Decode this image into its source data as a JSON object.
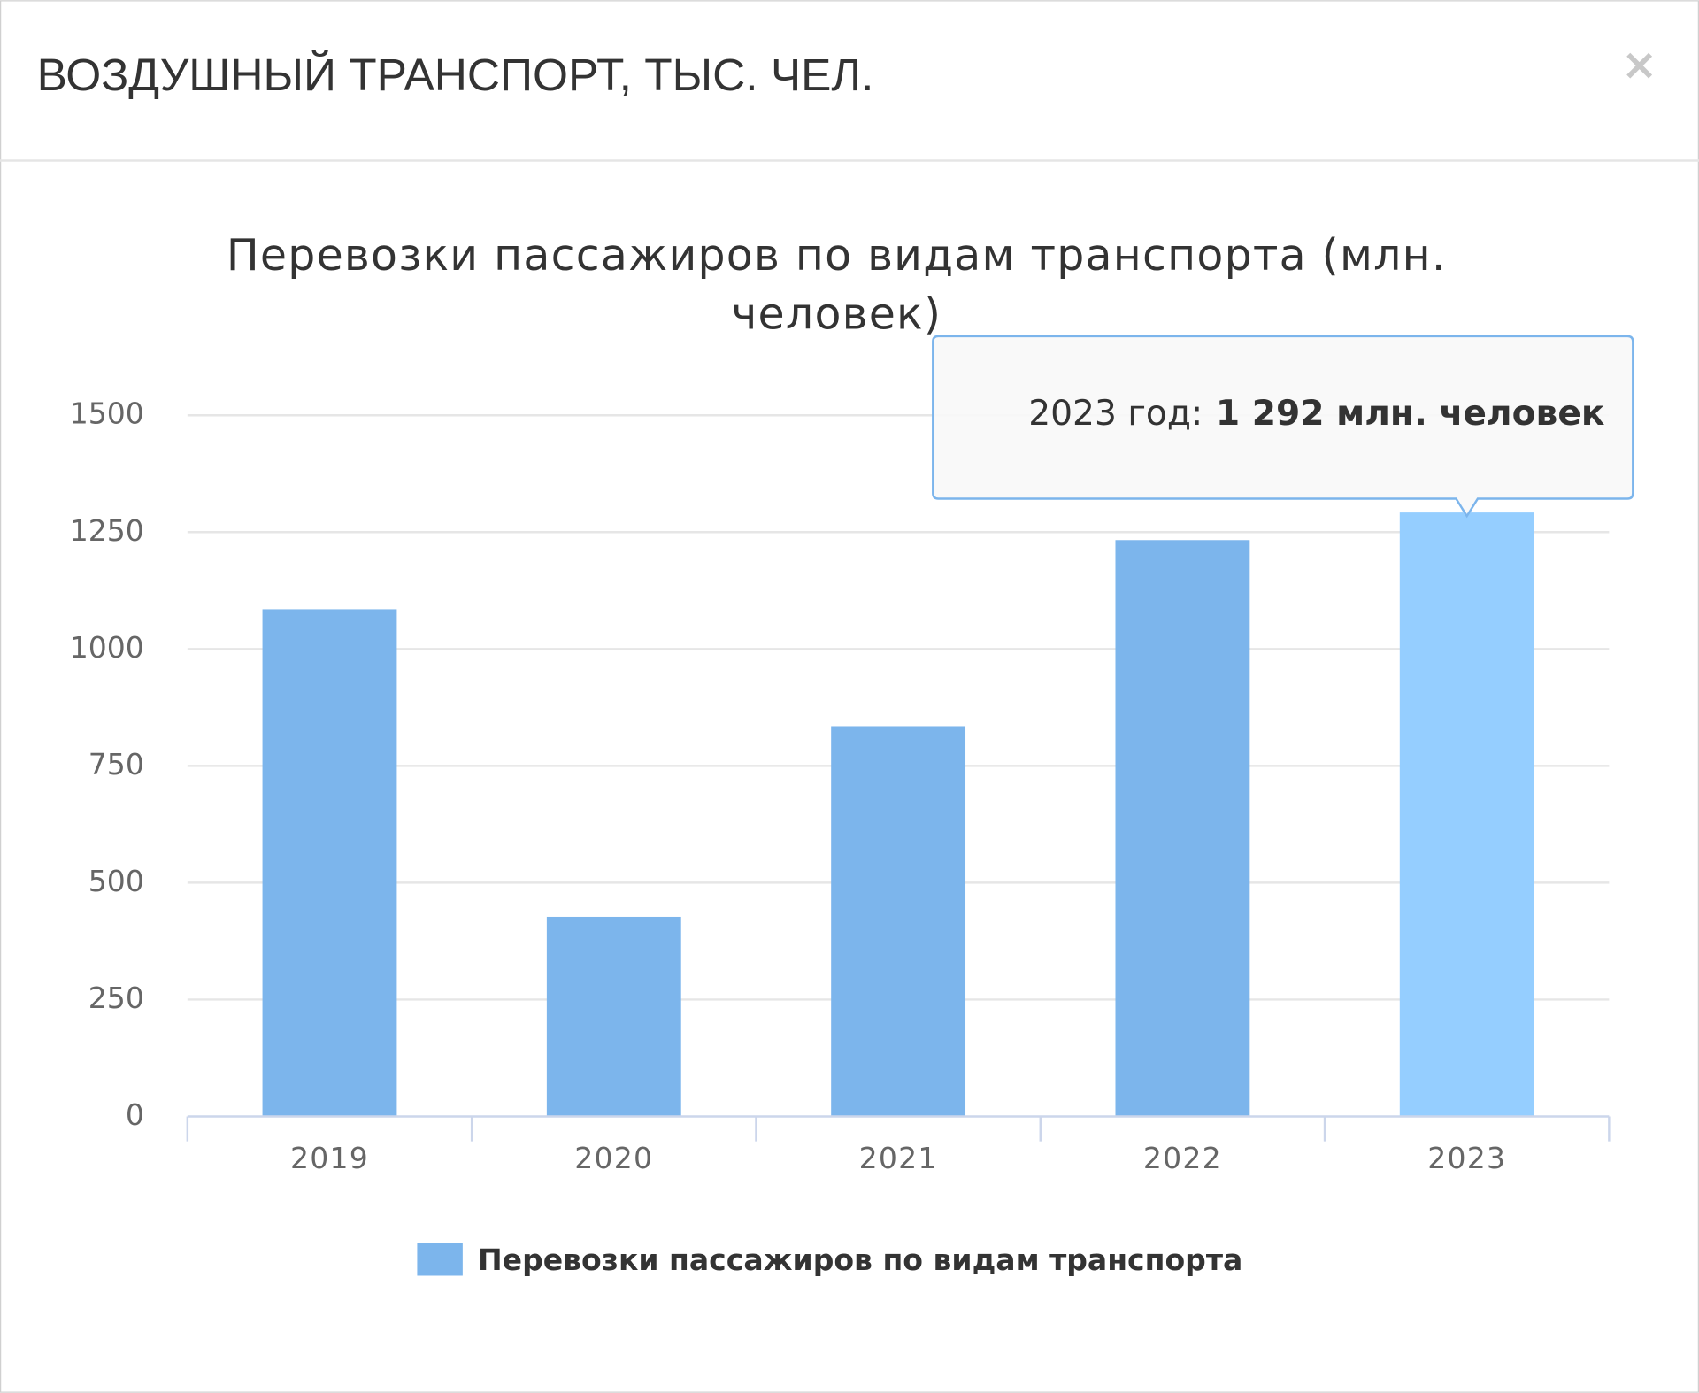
{
  "header": {
    "title": "ВОЗДУШНЫЙ ТРАНСПОРТ, ТЫС. ЧЕЛ.",
    "close": "×"
  },
  "chart_data": {
    "type": "bar",
    "title_lines": [
      "Перевозки пассажиров по видам транспорта (млн.",
      "человек)"
    ],
    "categories": [
      "2019",
      "2020",
      "2021",
      "2022",
      "2023"
    ],
    "series": [
      {
        "name": "Перевозки пассажиров по видам транспорта",
        "color": "#7cb5ec",
        "colors": [
          "#7cb5ec",
          "#7cb5ec",
          "#7cb5ec",
          "#7cb5ec",
          "#95ceff"
        ],
        "values": [
          1085,
          427,
          835,
          1233,
          1292
        ]
      }
    ],
    "ylim": [
      0,
      1500
    ],
    "yticks": [
      0,
      250,
      500,
      750,
      1000,
      1250,
      1500
    ],
    "grid": true,
    "legend": "bottom",
    "tooltip": {
      "category": "2023 год:",
      "text": "1 292 млн. человек"
    }
  }
}
